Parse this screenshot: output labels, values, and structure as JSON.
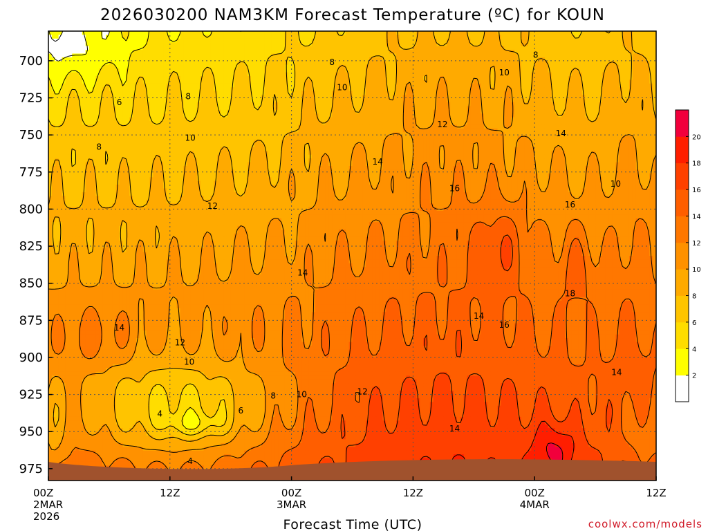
{
  "chart_data": {
    "type": "heatmap",
    "title": "2026030200 NAM3KM Forecast Temperature (ºC) for KOUN",
    "xlabel": "Forecast Time (UTC)",
    "ylabel": "",
    "credit": "coolwx.com/models",
    "x_range_hours": [
      0,
      60
    ],
    "y_range_hPa": [
      680,
      983
    ],
    "y_inverted": true,
    "grid": "dotted",
    "legend": "right",
    "x_ticks": [
      {
        "hour": 0,
        "lines": [
          "00Z",
          "2MAR",
          "2026"
        ]
      },
      {
        "hour": 12,
        "lines": [
          "12Z"
        ]
      },
      {
        "hour": 24,
        "lines": [
          "00Z",
          "3MAR"
        ]
      },
      {
        "hour": 36,
        "lines": [
          "12Z"
        ]
      },
      {
        "hour": 48,
        "lines": [
          "00Z",
          "4MAR"
        ]
      },
      {
        "hour": 60,
        "lines": [
          "12Z"
        ]
      }
    ],
    "y_ticks": [
      700,
      725,
      750,
      775,
      800,
      825,
      850,
      875,
      900,
      925,
      950,
      975
    ],
    "colorbar": {
      "bins": [
        0,
        2,
        4,
        6,
        8,
        10,
        12,
        14,
        16,
        18,
        20,
        22
      ],
      "labels": [
        "2",
        "4",
        "6",
        "8",
        "10",
        "12",
        "14",
        "16",
        "18",
        "20"
      ],
      "colors": [
        "#ffffff",
        "#ffff00",
        "#ffdd00",
        "#ffc400",
        "#ffaa00",
        "#ff9100",
        "#ff7700",
        "#ff5e00",
        "#ff4000",
        "#ff1e00",
        "#f2003c"
      ]
    },
    "ground_color": "#a0522d",
    "contour_labels": [
      {
        "text": "6",
        "hour": 7.0,
        "p": 728
      },
      {
        "text": "8",
        "hour": 13.8,
        "p": 724
      },
      {
        "text": "8",
        "hour": 28.0,
        "p": 701
      },
      {
        "text": "8",
        "hour": 48.1,
        "p": 696
      },
      {
        "text": "8",
        "hour": 5.0,
        "p": 758
      },
      {
        "text": "8",
        "hour": 22.2,
        "p": 926
      },
      {
        "text": "10",
        "hour": 29.0,
        "p": 718
      },
      {
        "text": "10",
        "hour": 45.0,
        "p": 708
      },
      {
        "text": "10",
        "hour": 14.0,
        "p": 752
      },
      {
        "text": "10",
        "hour": 13.9,
        "p": 903
      },
      {
        "text": "10",
        "hour": 25.0,
        "p": 925
      },
      {
        "text": "10",
        "hour": 56.0,
        "p": 783
      },
      {
        "text": "12",
        "hour": 38.9,
        "p": 743
      },
      {
        "text": "12",
        "hour": 16.2,
        "p": 798
      },
      {
        "text": "12",
        "hour": 13.0,
        "p": 890
      },
      {
        "text": "12",
        "hour": 31.0,
        "p": 923
      },
      {
        "text": "14",
        "hour": 32.5,
        "p": 768
      },
      {
        "text": "14",
        "hour": 50.6,
        "p": 749
      },
      {
        "text": "14",
        "hour": 25.1,
        "p": 843
      },
      {
        "text": "14",
        "hour": 7.0,
        "p": 880
      },
      {
        "text": "14",
        "hour": 42.5,
        "p": 872
      },
      {
        "text": "14",
        "hour": 40.1,
        "p": 948
      },
      {
        "text": "14",
        "hour": 56.1,
        "p": 910
      },
      {
        "text": "16",
        "hour": 40.1,
        "p": 786
      },
      {
        "text": "16",
        "hour": 51.5,
        "p": 797
      },
      {
        "text": "16",
        "hour": 45.0,
        "p": 878
      },
      {
        "text": "18",
        "hour": 51.5,
        "p": 857
      },
      {
        "text": "4",
        "hour": 11.0,
        "p": 938
      },
      {
        "text": "4",
        "hour": 14.0,
        "p": 970
      },
      {
        "text": "6",
        "hour": 19.0,
        "p": 936
      }
    ]
  }
}
